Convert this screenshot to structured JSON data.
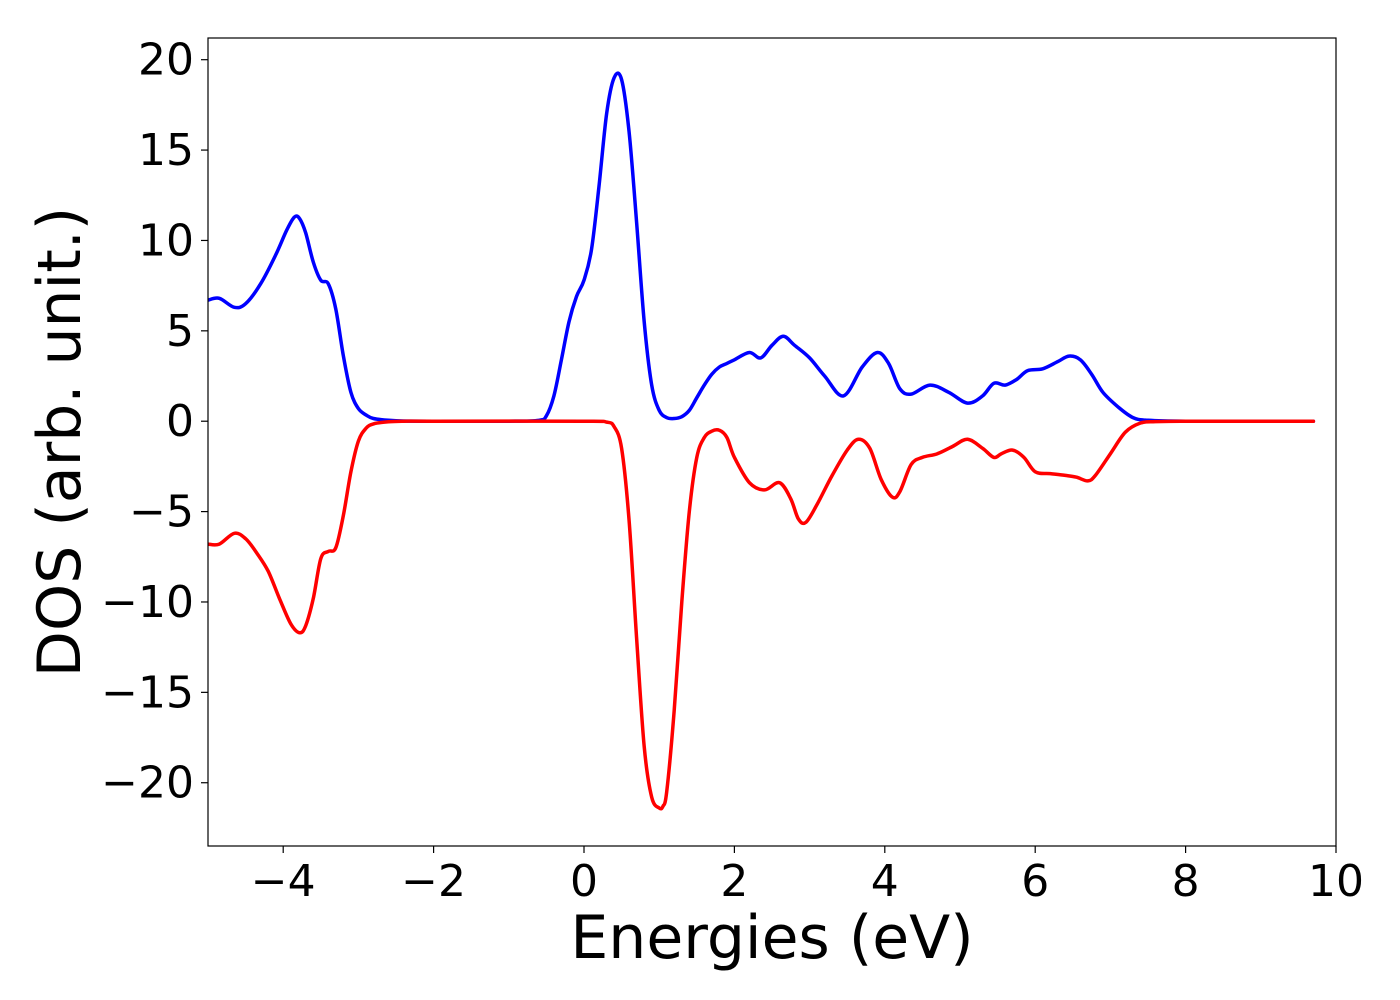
{
  "chart_data": {
    "type": "line",
    "title": "",
    "xlabel": "Energies (eV)",
    "ylabel": "DOS (arb. unit.)",
    "xlim": [
      -5,
      10
    ],
    "ylim": [
      -23.5,
      21.2
    ],
    "grid": false,
    "legend": "none",
    "x_ticks": [
      -4,
      -2,
      0,
      2,
      4,
      6,
      8,
      10
    ],
    "x_tick_labels": [
      "−4",
      "−2",
      "0",
      "2",
      "4",
      "6",
      "8",
      "10"
    ],
    "y_ticks": [
      20,
      15,
      10,
      5,
      0,
      -5,
      -10,
      -15,
      -20
    ],
    "y_tick_labels": [
      "20",
      "15",
      "10",
      "5",
      "0",
      "−5",
      "−10",
      "−15",
      "−20"
    ],
    "series": [
      {
        "color": "#0000ff",
        "x": [
          -5.0,
          -4.85,
          -4.65,
          -4.5,
          -4.3,
          -4.1,
          -3.95,
          -3.85,
          -3.78,
          -3.7,
          -3.6,
          -3.5,
          -3.4,
          -3.3,
          -3.2,
          -3.1,
          -3.0,
          -2.9,
          -2.8,
          -2.6,
          -2.4,
          -2.0,
          -1.0,
          -0.6,
          -0.5,
          -0.4,
          -0.3,
          -0.2,
          -0.1,
          0.0,
          0.1,
          0.2,
          0.3,
          0.4,
          0.5,
          0.6,
          0.7,
          0.8,
          0.9,
          1.0,
          1.1,
          1.2,
          1.3,
          1.4,
          1.5,
          1.6,
          1.7,
          1.8,
          1.9,
          2.0,
          2.2,
          2.35,
          2.5,
          2.65,
          2.8,
          3.0,
          3.2,
          3.45,
          3.7,
          3.9,
          4.05,
          4.2,
          4.35,
          4.6,
          4.85,
          5.1,
          5.3,
          5.45,
          5.6,
          5.75,
          5.9,
          6.1,
          6.3,
          6.45,
          6.6,
          6.75,
          6.9,
          7.1,
          7.3,
          7.5,
          8.0,
          9.0,
          9.7
        ],
        "y": [
          6.7,
          6.8,
          6.3,
          6.5,
          7.6,
          9.2,
          10.6,
          11.3,
          11.2,
          10.4,
          8.8,
          7.8,
          7.6,
          6.2,
          3.6,
          1.6,
          0.7,
          0.35,
          0.15,
          0.05,
          0.01,
          0.0,
          0.0,
          0.05,
          0.3,
          1.4,
          3.4,
          5.5,
          6.9,
          7.8,
          9.5,
          13.0,
          17.0,
          19.0,
          18.9,
          16.0,
          11.0,
          5.5,
          2.0,
          0.6,
          0.2,
          0.15,
          0.25,
          0.6,
          1.3,
          2.0,
          2.6,
          3.0,
          3.2,
          3.4,
          3.8,
          3.5,
          4.2,
          4.7,
          4.2,
          3.5,
          2.5,
          1.4,
          3.0,
          3.8,
          3.2,
          1.8,
          1.5,
          2.0,
          1.6,
          1.0,
          1.4,
          2.1,
          2.0,
          2.3,
          2.8,
          2.9,
          3.3,
          3.6,
          3.4,
          2.6,
          1.6,
          0.8,
          0.2,
          0.05,
          0.0,
          0.0,
          0.0
        ]
      },
      {
        "color": "#ff0000",
        "x": [
          -5.0,
          -4.85,
          -4.65,
          -4.5,
          -4.35,
          -4.2,
          -4.05,
          -3.9,
          -3.78,
          -3.7,
          -3.6,
          -3.5,
          -3.4,
          -3.3,
          -3.2,
          -3.1,
          -3.0,
          -2.9,
          -2.8,
          -2.6,
          -2.4,
          -2.0,
          0.0,
          0.3,
          0.4,
          0.5,
          0.6,
          0.7,
          0.8,
          0.9,
          1.0,
          1.05,
          1.1,
          1.2,
          1.3,
          1.4,
          1.5,
          1.6,
          1.7,
          1.8,
          1.9,
          2.0,
          2.2,
          2.4,
          2.6,
          2.75,
          2.85,
          2.95,
          3.1,
          3.3,
          3.5,
          3.65,
          3.8,
          3.95,
          4.1,
          4.2,
          4.35,
          4.5,
          4.7,
          4.9,
          5.1,
          5.3,
          5.45,
          5.55,
          5.7,
          5.85,
          6.0,
          6.2,
          6.4,
          6.55,
          6.7,
          6.8,
          7.0,
          7.2,
          7.4,
          7.6,
          8.0,
          9.0,
          9.7
        ],
        "y": [
          -6.8,
          -6.8,
          -6.2,
          -6.5,
          -7.3,
          -8.3,
          -9.8,
          -11.2,
          -11.7,
          -11.3,
          -9.8,
          -7.6,
          -7.2,
          -7.0,
          -5.2,
          -2.8,
          -1.1,
          -0.4,
          -0.15,
          -0.03,
          0.0,
          0.0,
          0.0,
          -0.05,
          -0.3,
          -1.5,
          -5.5,
          -12.0,
          -18.0,
          -20.8,
          -21.4,
          -21.3,
          -20.5,
          -16.0,
          -10.0,
          -5.0,
          -2.0,
          -0.9,
          -0.55,
          -0.5,
          -0.9,
          -2.0,
          -3.4,
          -3.8,
          -3.4,
          -4.3,
          -5.4,
          -5.6,
          -4.6,
          -3.0,
          -1.6,
          -1.0,
          -1.5,
          -3.2,
          -4.2,
          -3.9,
          -2.4,
          -2.0,
          -1.8,
          -1.4,
          -1.0,
          -1.5,
          -2.0,
          -1.8,
          -1.6,
          -2.0,
          -2.8,
          -2.9,
          -3.0,
          -3.1,
          -3.3,
          -3.0,
          -1.8,
          -0.6,
          -0.1,
          -0.02,
          0.0,
          0.0,
          0.0
        ]
      }
    ]
  }
}
